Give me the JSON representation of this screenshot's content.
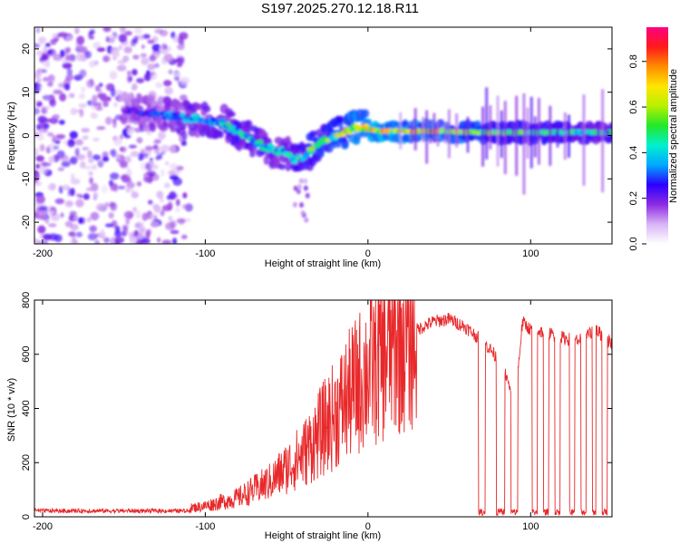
{
  "figure": {
    "title": "S197.2025.270.12.18.R11"
  },
  "chart_data": [
    {
      "type": "heatmap",
      "panel": "spectrogram",
      "xlabel": "Height of straight line (km)",
      "ylabel": "Frequency (Hz)",
      "xlim": [
        -205,
        150
      ],
      "ylim": [
        -25,
        25
      ],
      "xticks": [
        -200,
        -100,
        0,
        100
      ],
      "yticks": [
        -20,
        -10,
        0,
        10,
        20
      ],
      "colorbar": {
        "label": "Normalized spectral amplitude",
        "range": [
          0,
          0.95
        ],
        "ticks": [
          0.0,
          0.2,
          0.4,
          0.6,
          0.8
        ],
        "colors": [
          "#ffffff",
          "#d9b5f5",
          "#8b2be2",
          "#2b00ff",
          "#00a8ff",
          "#00f0d0",
          "#22e82a",
          "#b8f000",
          "#ffe600",
          "#ff8c00",
          "#ff1a1a",
          "#ff0080"
        ]
      },
      "ridge": {
        "x": [
          -150,
          -140,
          -130,
          -120,
          -110,
          -100,
          -90,
          -80,
          -70,
          -60,
          -50,
          -45,
          -40,
          -35,
          -30,
          -20,
          -10,
          -5,
          0,
          10,
          20,
          40,
          60,
          80,
          100,
          120,
          140,
          150
        ],
        "y": [
          6,
          5.5,
          5,
          4.5,
          4,
          3.5,
          3,
          1,
          -1.5,
          -3,
          -4,
          -5.5,
          -5,
          -3.5,
          -1.5,
          0,
          1.5,
          2,
          1.5,
          1,
          1,
          1,
          0.8,
          0.7,
          0.7,
          0.7,
          0.7,
          0.7
        ],
        "amplitude": [
          0.25,
          0.3,
          0.32,
          0.35,
          0.4,
          0.45,
          0.45,
          0.5,
          0.5,
          0.45,
          0.45,
          0.5,
          0.55,
          0.6,
          0.6,
          0.7,
          0.75,
          0.8,
          0.85,
          0.85,
          0.8,
          0.8,
          0.7,
          0.65,
          0.6,
          0.55,
          0.5,
          0.5
        ]
      },
      "noise_region": {
        "x_range": [
          -205,
          -110
        ],
        "amplitude_range": [
          0.05,
          0.25
        ]
      }
    },
    {
      "type": "line",
      "panel": "snr",
      "xlabel": "Height of straight line (km)",
      "ylabel": "SNR (10 * v/v)",
      "xlim": [
        -205,
        150
      ],
      "ylim": [
        0,
        800
      ],
      "xticks": [
        -200,
        -100,
        0,
        100
      ],
      "yticks": [
        0,
        200,
        400,
        600,
        800
      ],
      "color": "#e8282a",
      "envelope": {
        "x": [
          -205,
          -150,
          -120,
          -100,
          -80,
          -60,
          -40,
          -20,
          0,
          20,
          40,
          50,
          60,
          70,
          75,
          80,
          85,
          90,
          95,
          100,
          110,
          120,
          130,
          140,
          150
        ],
        "y": [
          20,
          20,
          22,
          40,
          70,
          130,
          230,
          380,
          540,
          660,
          720,
          730,
          700,
          650,
          620,
          580,
          520,
          400,
          720,
          690,
          680,
          660,
          650,
          690,
          640
        ]
      },
      "dropouts": [
        [
          68,
          72
        ],
        [
          79,
          84
        ],
        [
          88,
          92
        ],
        [
          101,
          104
        ],
        [
          108,
          111
        ],
        [
          115,
          118
        ],
        [
          124,
          127
        ],
        [
          131,
          134
        ],
        [
          138,
          140
        ],
        [
          144,
          147
        ]
      ]
    }
  ]
}
